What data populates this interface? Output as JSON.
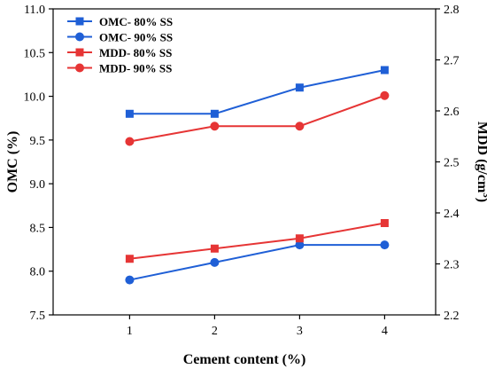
{
  "chart_data": {
    "type": "line",
    "title": "",
    "xlabel": "Cement content (%)",
    "ylabel_left": "OMC (%)",
    "ylabel_right": {
      "base": "MDD (g/cm",
      "sup": "3",
      "close": ")"
    },
    "x": [
      1,
      2,
      3,
      4
    ],
    "xlim": [
      0.1,
      4.6
    ],
    "ylim_left": [
      7.5,
      11.0
    ],
    "ylim_right": [
      2.2,
      2.8
    ],
    "left_ticks": [
      "7.5",
      "8.0",
      "8.5",
      "9.0",
      "9.5",
      "10.0",
      "10.5",
      "11.0"
    ],
    "right_ticks": [
      "2.2",
      "2.3",
      "2.4",
      "2.5",
      "2.6",
      "2.7",
      "2.8"
    ],
    "x_ticks": [
      "1",
      "2",
      "3",
      "4"
    ],
    "grid": false,
    "legend_position": "top-left",
    "series": [
      {
        "name": "OMC- 80% SS",
        "axis": "left",
        "marker": "square",
        "color": "#1f5fd6",
        "values": [
          9.8,
          9.8,
          10.1,
          10.3
        ]
      },
      {
        "name": "OMC- 90% SS",
        "axis": "left",
        "marker": "circle",
        "color": "#1f5fd6",
        "values": [
          7.9,
          8.1,
          8.3,
          8.3
        ]
      },
      {
        "name": "MDD- 80% SS",
        "axis": "right",
        "marker": "square",
        "color": "#e63535",
        "values": [
          2.31,
          2.33,
          2.35,
          2.38
        ]
      },
      {
        "name": "MDD- 90% SS",
        "axis": "right",
        "marker": "circle",
        "color": "#e63535",
        "values": [
          2.54,
          2.57,
          2.57,
          2.63
        ]
      }
    ]
  }
}
